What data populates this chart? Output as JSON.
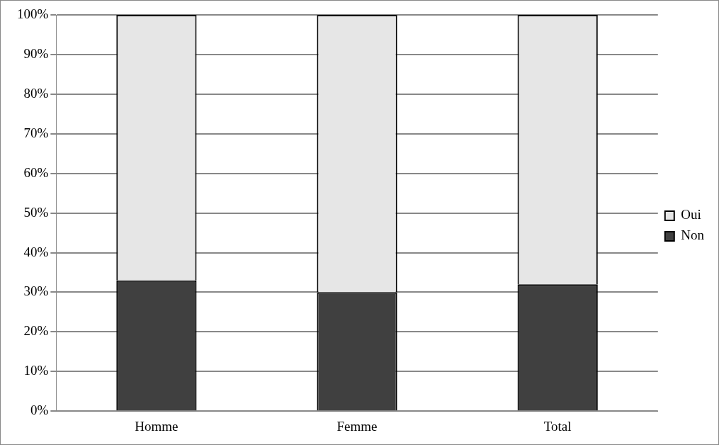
{
  "chart_data": {
    "type": "bar",
    "stacked": true,
    "categories": [
      "Homme",
      "Femme",
      "Total"
    ],
    "series": [
      {
        "name": "Non",
        "color": "#404040",
        "values": [
          33,
          30,
          32
        ]
      },
      {
        "name": "Oui",
        "color": "#e6e6e6",
        "values": [
          67,
          70,
          68
        ]
      }
    ],
    "ylim": [
      0,
      100
    ],
    "yticks": [
      {
        "value": 0,
        "label": "0%"
      },
      {
        "value": 10,
        "label": "10%"
      },
      {
        "value": 20,
        "label": "20%"
      },
      {
        "value": 30,
        "label": "30%"
      },
      {
        "value": 40,
        "label": "40%"
      },
      {
        "value": 50,
        "label": "50%"
      },
      {
        "value": 60,
        "label": "60%"
      },
      {
        "value": 70,
        "label": "70%"
      },
      {
        "value": 80,
        "label": "80%"
      },
      {
        "value": 90,
        "label": "90%"
      },
      {
        "value": 100,
        "label": "100%"
      }
    ],
    "grid": "y",
    "legend": "right"
  }
}
